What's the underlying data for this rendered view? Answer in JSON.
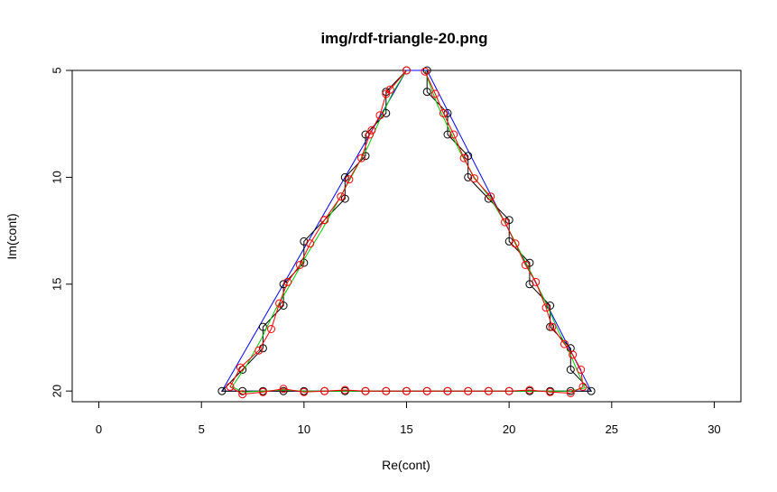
{
  "chart_data": {
    "type": "line",
    "title": "img/rdf-triangle-20.png",
    "xlabel": "Re(cont)",
    "ylabel": "Im(cont)",
    "xlim": [
      -1.3,
      31.3
    ],
    "ylim": [
      5.0,
      20.5
    ],
    "y_reversed": true,
    "x_ticks": [
      "0",
      "5",
      "10",
      "15",
      "20",
      "25",
      "30"
    ],
    "y_ticks": [
      "5",
      "10",
      "15",
      "20"
    ],
    "grid": false,
    "series": [
      {
        "color": "#0000ff",
        "style": "line",
        "points": [
          [
            6,
            20
          ],
          [
            15,
            5
          ],
          [
            16,
            5
          ],
          [
            24,
            20
          ],
          [
            6,
            20
          ]
        ]
      },
      {
        "color": "#000000",
        "style": "line+points",
        "points": [
          [
            15,
            5
          ],
          [
            14,
            6
          ],
          [
            14,
            7
          ],
          [
            13,
            8
          ],
          [
            13,
            9
          ],
          [
            12,
            10
          ],
          [
            12,
            11
          ],
          [
            11,
            12
          ],
          [
            10,
            13
          ],
          [
            10,
            14
          ],
          [
            9,
            15
          ],
          [
            9,
            16
          ],
          [
            8,
            17
          ],
          [
            8,
            18
          ],
          [
            7,
            19
          ],
          [
            6,
            20
          ],
          [
            7,
            20
          ],
          [
            8,
            20
          ],
          [
            9,
            20
          ],
          [
            10,
            20
          ],
          [
            11,
            20
          ],
          [
            12,
            20
          ],
          [
            13,
            20
          ],
          [
            14,
            20
          ],
          [
            15,
            20
          ],
          [
            16,
            20
          ],
          [
            17,
            20
          ],
          [
            18,
            20
          ],
          [
            19,
            20
          ],
          [
            20,
            20
          ],
          [
            21,
            20
          ],
          [
            22,
            20
          ],
          [
            23,
            20
          ],
          [
            24,
            20
          ],
          [
            23,
            19
          ],
          [
            23,
            18
          ],
          [
            22,
            17
          ],
          [
            22,
            16
          ],
          [
            21,
            15
          ],
          [
            21,
            14
          ],
          [
            20,
            13
          ],
          [
            20,
            12
          ],
          [
            19,
            11
          ],
          [
            18,
            10
          ],
          [
            18,
            9
          ],
          [
            17,
            8
          ],
          [
            17,
            7
          ],
          [
            16,
            6
          ],
          [
            16,
            5
          ]
        ]
      },
      {
        "color": "#00cc00",
        "style": "line",
        "points": [
          [
            15,
            5
          ],
          [
            14.35,
            6.0
          ],
          [
            13.75,
            7.2
          ],
          [
            13.1,
            8.6
          ],
          [
            12.3,
            10.0
          ],
          [
            11.55,
            11.3
          ],
          [
            10.85,
            12.5
          ],
          [
            10.15,
            13.6
          ],
          [
            9.4,
            14.9
          ],
          [
            8.6,
            16.2
          ],
          [
            7.9,
            17.6
          ],
          [
            7.2,
            18.8
          ],
          [
            6.5,
            19.8
          ],
          [
            7.0,
            20.05
          ],
          [
            8.0,
            20.0
          ],
          [
            9.0,
            19.95
          ],
          [
            10.0,
            20.0
          ],
          [
            11.0,
            20.0
          ],
          [
            12.0,
            20.0
          ],
          [
            13.0,
            20.0
          ],
          [
            14.0,
            20.0
          ],
          [
            15.0,
            20.0
          ],
          [
            16.0,
            20.0
          ],
          [
            17.0,
            20.0
          ],
          [
            18.0,
            20.0
          ],
          [
            19.0,
            20.0
          ],
          [
            20.0,
            20.0
          ],
          [
            21.0,
            20.0
          ],
          [
            22.0,
            20.0
          ],
          [
            23.0,
            20.0
          ],
          [
            23.7,
            19.85
          ],
          [
            23.3,
            19.0
          ],
          [
            22.9,
            18.1
          ],
          [
            22.4,
            17.2
          ],
          [
            21.9,
            16.1
          ],
          [
            21.3,
            14.9
          ],
          [
            20.6,
            13.6
          ],
          [
            19.9,
            12.3
          ],
          [
            19.1,
            11.0
          ],
          [
            18.3,
            10.0
          ],
          [
            17.6,
            8.8
          ],
          [
            17.0,
            7.6
          ],
          [
            16.5,
            6.6
          ],
          [
            16.0,
            5.3
          ],
          [
            15.9,
            5.0
          ]
        ]
      },
      {
        "color": "#ff0000",
        "style": "line+points",
        "points": [
          [
            15,
            5
          ],
          [
            14.2,
            5.9
          ],
          [
            14.0,
            6.1
          ],
          [
            13.7,
            7.1
          ],
          [
            13.3,
            7.8
          ],
          [
            13.2,
            8.0
          ],
          [
            12.8,
            9.1
          ],
          [
            12.2,
            10.1
          ],
          [
            11.8,
            10.9
          ],
          [
            11.0,
            12.0
          ],
          [
            10.3,
            13.1
          ],
          [
            9.8,
            14.1
          ],
          [
            9.2,
            14.9
          ],
          [
            8.8,
            15.9
          ],
          [
            8.4,
            17.1
          ],
          [
            7.8,
            18.1
          ],
          [
            6.9,
            18.9
          ],
          [
            6.4,
            19.8
          ],
          [
            7.0,
            20.15
          ],
          [
            8.0,
            20.05
          ],
          [
            9.0,
            19.9
          ],
          [
            10.0,
            20.05
          ],
          [
            11.0,
            20.0
          ],
          [
            12.0,
            19.95
          ],
          [
            13.0,
            20.0
          ],
          [
            14.0,
            20.0
          ],
          [
            15.0,
            20.0
          ],
          [
            16.0,
            20.0
          ],
          [
            17.0,
            20.0
          ],
          [
            18.0,
            20.0
          ],
          [
            19.0,
            20.0
          ],
          [
            20.0,
            20.0
          ],
          [
            21.0,
            19.95
          ],
          [
            22.0,
            20.05
          ],
          [
            23.0,
            20.1
          ],
          [
            23.6,
            19.8
          ],
          [
            23.5,
            19.0
          ],
          [
            23.1,
            18.3
          ],
          [
            22.7,
            17.8
          ],
          [
            22.1,
            17.0
          ],
          [
            21.8,
            16.1
          ],
          [
            21.3,
            14.9
          ],
          [
            20.8,
            14.1
          ],
          [
            20.3,
            13.1
          ],
          [
            19.8,
            12.1
          ],
          [
            19.1,
            10.9
          ],
          [
            18.3,
            10.05
          ],
          [
            17.8,
            9.1
          ],
          [
            17.3,
            8.0
          ],
          [
            16.8,
            7.0
          ],
          [
            16.4,
            6.1
          ],
          [
            15.9,
            5.05
          ]
        ]
      }
    ]
  }
}
